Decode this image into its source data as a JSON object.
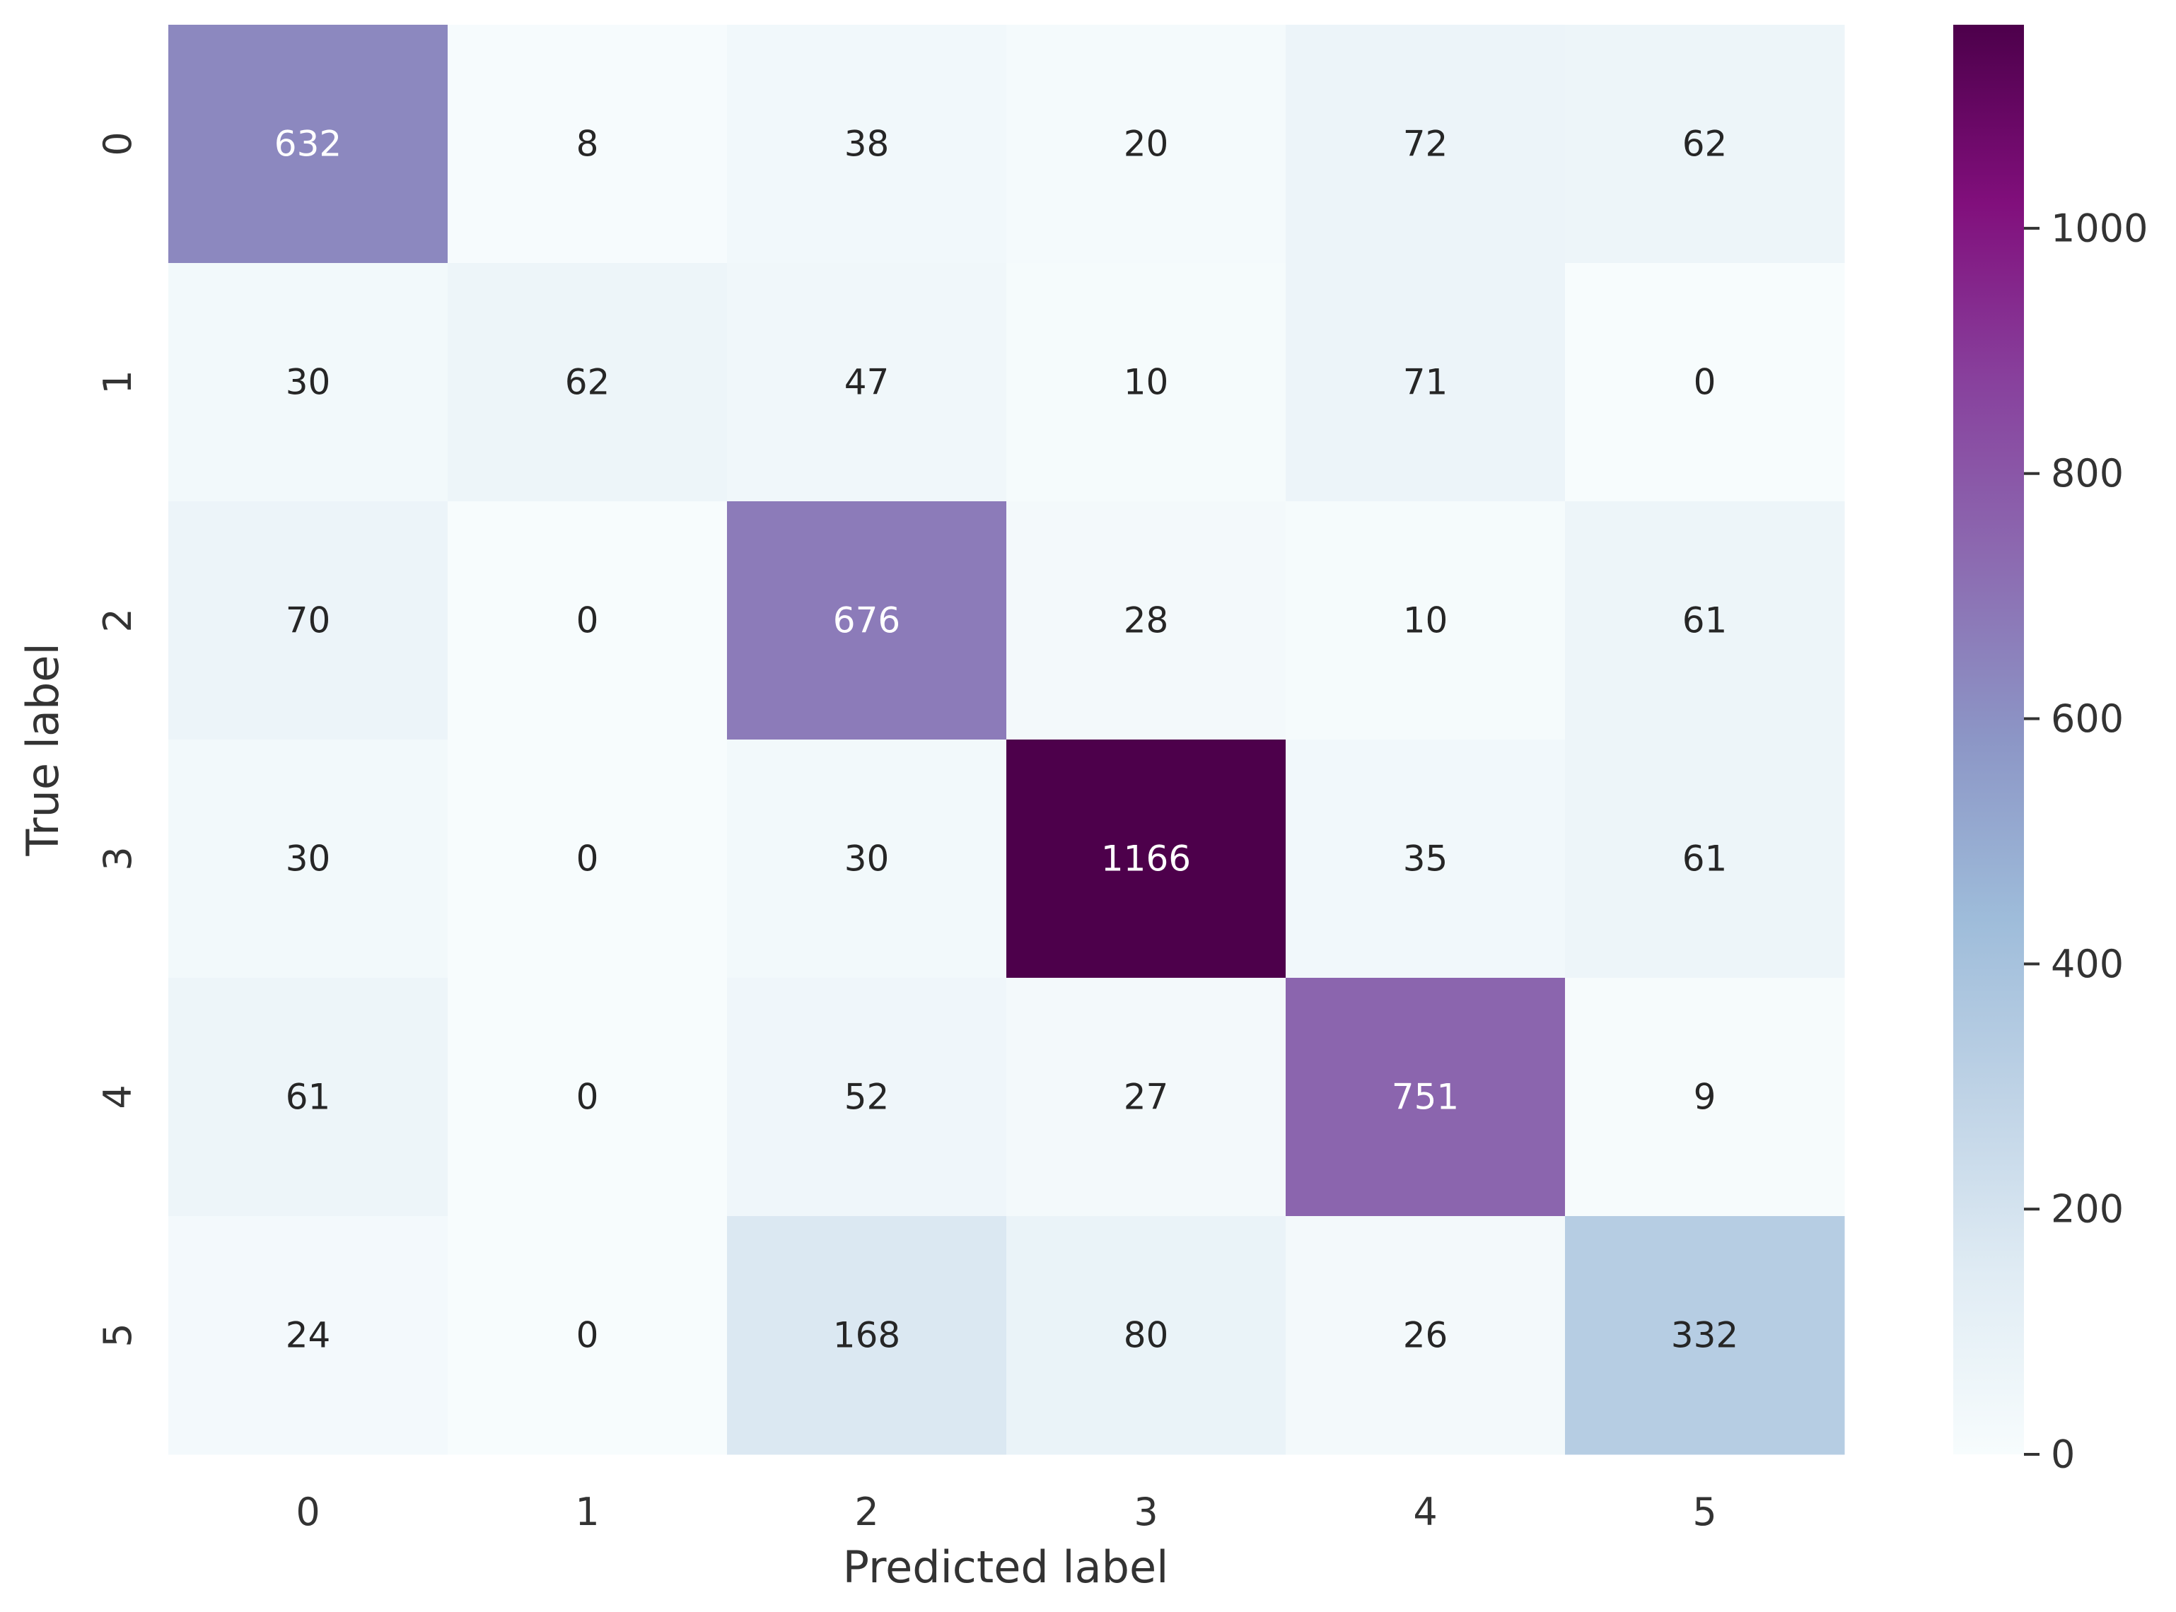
{
  "chart_data": {
    "type": "heatmap",
    "title": "",
    "xlabel": "Predicted label",
    "ylabel": "True label",
    "x_categories": [
      "0",
      "1",
      "2",
      "3",
      "4",
      "5"
    ],
    "y_categories": [
      "0",
      "1",
      "2",
      "3",
      "4",
      "5"
    ],
    "values": [
      [
        632,
        8,
        38,
        20,
        72,
        62
      ],
      [
        30,
        62,
        47,
        10,
        71,
        0
      ],
      [
        70,
        0,
        676,
        28,
        10,
        61
      ],
      [
        30,
        0,
        30,
        1166,
        35,
        61
      ],
      [
        61,
        0,
        52,
        27,
        751,
        9
      ],
      [
        24,
        0,
        168,
        80,
        26,
        332
      ]
    ],
    "colormap": "BuPu",
    "vmin": 0,
    "vmax": 1166,
    "colorbar": {
      "ticks": [
        0,
        200,
        400,
        600,
        800,
        1000
      ],
      "labels": [
        "0",
        "200",
        "400",
        "600",
        "800",
        "1000"
      ]
    },
    "colormap_stops": [
      "#f7fcfd",
      "#e0ecf4",
      "#bfd3e6",
      "#9ebcda",
      "#8c96c6",
      "#8c6bb1",
      "#88419d",
      "#810f7c",
      "#4d004b"
    ]
  }
}
